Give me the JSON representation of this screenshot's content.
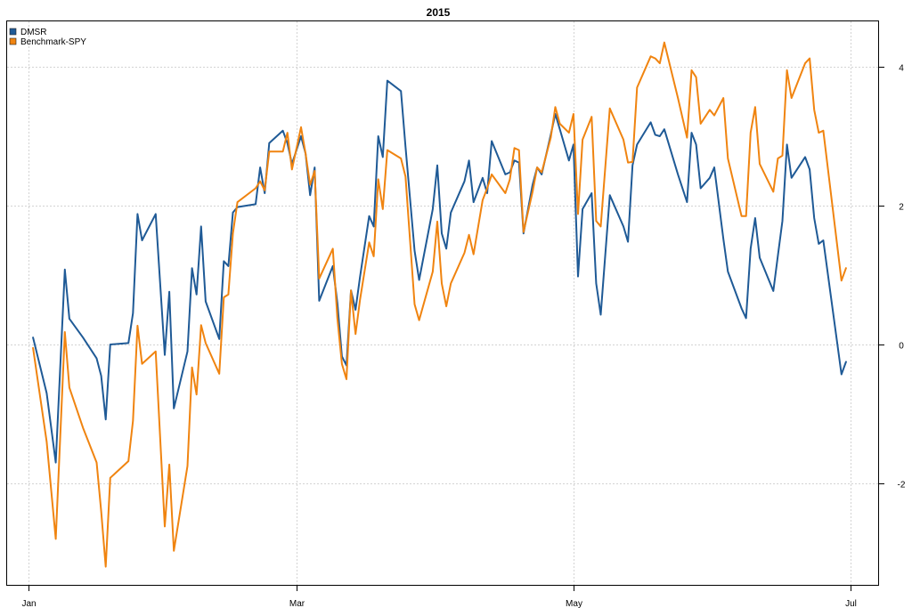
{
  "chart_data": {
    "type": "line",
    "title": "2015",
    "xlabel": "",
    "ylabel": "",
    "x_axis": {
      "type": "date",
      "range": [
        "2015-01-02",
        "2015-06-30"
      ],
      "ticks": [
        {
          "date": "2015-01-01",
          "label": "Jan"
        },
        {
          "date": "2015-03-01",
          "label": "Mar"
        },
        {
          "date": "2015-05-01",
          "label": "May"
        },
        {
          "date": "2015-07-01",
          "label": "Jul"
        }
      ]
    },
    "y_axis": {
      "position": "right",
      "ylim": [
        -3.4,
        4.6
      ],
      "ticks": [
        {
          "value": -2,
          "label": "-2"
        },
        {
          "value": 0,
          "label": "0"
        },
        {
          "value": 2,
          "label": "2"
        },
        {
          "value": 4,
          "label": "4"
        }
      ]
    },
    "grid": true,
    "legend": {
      "placement": "top-left"
    },
    "series": [
      {
        "name": "DMSR",
        "color": "#1f5a96",
        "points": [
          [
            "2015-01-02",
            0.1
          ],
          [
            "2015-01-05",
            -0.7
          ],
          [
            "2015-01-07",
            -1.7
          ],
          [
            "2015-01-09",
            1.08
          ],
          [
            "2015-01-10",
            0.37
          ],
          [
            "2015-01-13",
            0.1
          ],
          [
            "2015-01-16",
            -0.2
          ],
          [
            "2015-01-17",
            -0.45
          ],
          [
            "2015-01-18",
            -1.08
          ],
          [
            "2015-01-19",
            0.0
          ],
          [
            "2015-01-23",
            0.02
          ],
          [
            "2015-01-24",
            0.45
          ],
          [
            "2015-01-25",
            1.88
          ],
          [
            "2015-01-26",
            1.5
          ],
          [
            "2015-01-29",
            1.88
          ],
          [
            "2015-01-31",
            -0.15
          ],
          [
            "2015-02-01",
            0.76
          ],
          [
            "2015-02-02",
            -0.92
          ],
          [
            "2015-02-05",
            -0.1
          ],
          [
            "2015-02-06",
            1.1
          ],
          [
            "2015-02-07",
            0.72
          ],
          [
            "2015-02-08",
            1.7
          ],
          [
            "2015-02-09",
            0.62
          ],
          [
            "2015-02-12",
            0.08
          ],
          [
            "2015-02-13",
            1.2
          ],
          [
            "2015-02-14",
            1.13
          ],
          [
            "2015-02-15",
            1.9
          ],
          [
            "2015-02-16",
            1.98
          ],
          [
            "2015-02-20",
            2.02
          ],
          [
            "2015-02-21",
            2.55
          ],
          [
            "2015-02-22",
            2.18
          ],
          [
            "2015-02-23",
            2.9
          ],
          [
            "2015-02-26",
            3.08
          ],
          [
            "2015-02-27",
            2.9
          ],
          [
            "2015-02-28",
            2.6
          ],
          [
            "2015-03-02",
            3.0
          ],
          [
            "2015-03-03",
            2.75
          ],
          [
            "2015-03-04",
            2.15
          ],
          [
            "2015-03-05",
            2.55
          ],
          [
            "2015-03-06",
            0.63
          ],
          [
            "2015-03-09",
            1.13
          ],
          [
            "2015-03-10",
            0.6
          ],
          [
            "2015-03-11",
            -0.17
          ],
          [
            "2015-03-12",
            -0.3
          ],
          [
            "2015-03-13",
            0.78
          ],
          [
            "2015-03-14",
            0.5
          ],
          [
            "2015-03-15",
            0.98
          ],
          [
            "2015-03-17",
            1.85
          ],
          [
            "2015-03-18",
            1.7
          ],
          [
            "2015-03-19",
            3.0
          ],
          [
            "2015-03-20",
            2.7
          ],
          [
            "2015-03-21",
            3.8
          ],
          [
            "2015-03-24",
            3.65
          ],
          [
            "2015-03-25",
            2.85
          ],
          [
            "2015-03-27",
            1.35
          ],
          [
            "2015-03-28",
            0.93
          ],
          [
            "2015-03-31",
            1.95
          ],
          [
            "2015-04-01",
            2.58
          ],
          [
            "2015-04-02",
            1.6
          ],
          [
            "2015-04-03",
            1.38
          ],
          [
            "2015-04-04",
            1.9
          ],
          [
            "2015-04-07",
            2.35
          ],
          [
            "2015-04-08",
            2.65
          ],
          [
            "2015-04-09",
            2.05
          ],
          [
            "2015-04-11",
            2.4
          ],
          [
            "2015-04-12",
            2.18
          ],
          [
            "2015-04-13",
            2.93
          ],
          [
            "2015-04-16",
            2.45
          ],
          [
            "2015-04-17",
            2.48
          ],
          [
            "2015-04-18",
            2.65
          ],
          [
            "2015-04-19",
            2.62
          ],
          [
            "2015-04-20",
            1.6
          ],
          [
            "2015-04-22",
            2.3
          ],
          [
            "2015-04-23",
            2.55
          ],
          [
            "2015-04-24",
            2.45
          ],
          [
            "2015-04-26",
            3.02
          ],
          [
            "2015-04-27",
            3.32
          ],
          [
            "2015-04-28",
            3.1
          ],
          [
            "2015-04-30",
            2.65
          ],
          [
            "2015-05-01",
            2.88
          ],
          [
            "2015-05-02",
            0.98
          ],
          [
            "2015-05-03",
            1.95
          ],
          [
            "2015-05-05",
            2.18
          ],
          [
            "2015-05-06",
            0.88
          ],
          [
            "2015-05-07",
            0.43
          ],
          [
            "2015-05-09",
            2.15
          ],
          [
            "2015-05-12",
            1.7
          ],
          [
            "2015-05-13",
            1.48
          ],
          [
            "2015-05-14",
            2.58
          ],
          [
            "2015-05-15",
            2.88
          ],
          [
            "2015-05-18",
            3.2
          ],
          [
            "2015-05-19",
            3.02
          ],
          [
            "2015-05-20",
            3.0
          ],
          [
            "2015-05-21",
            3.1
          ],
          [
            "2015-05-24",
            2.45
          ],
          [
            "2015-05-26",
            2.05
          ],
          [
            "2015-05-27",
            3.05
          ],
          [
            "2015-05-28",
            2.88
          ],
          [
            "2015-05-29",
            2.25
          ],
          [
            "2015-05-31",
            2.4
          ],
          [
            "2015-06-01",
            2.55
          ],
          [
            "2015-06-03",
            1.52
          ],
          [
            "2015-06-04",
            1.05
          ],
          [
            "2015-06-07",
            0.52
          ],
          [
            "2015-06-08",
            0.38
          ],
          [
            "2015-06-09",
            1.38
          ],
          [
            "2015-06-10",
            1.82
          ],
          [
            "2015-06-11",
            1.25
          ],
          [
            "2015-06-14",
            0.77
          ],
          [
            "2015-06-15",
            1.28
          ],
          [
            "2015-06-16",
            1.78
          ],
          [
            "2015-06-17",
            2.88
          ],
          [
            "2015-06-18",
            2.4
          ],
          [
            "2015-06-21",
            2.7
          ],
          [
            "2015-06-22",
            2.52
          ],
          [
            "2015-06-23",
            1.82
          ],
          [
            "2015-06-24",
            1.45
          ],
          [
            "2015-06-25",
            1.5
          ],
          [
            "2015-06-29",
            -0.43
          ],
          [
            "2015-06-30",
            -0.25
          ]
        ]
      },
      {
        "name": "Benchmark-SPY",
        "color": "#f08410",
        "points": [
          [
            "2015-01-02",
            -0.05
          ],
          [
            "2015-01-05",
            -1.4
          ],
          [
            "2015-01-07",
            -2.8
          ],
          [
            "2015-01-09",
            0.18
          ],
          [
            "2015-01-10",
            -0.62
          ],
          [
            "2015-01-13",
            -1.2
          ],
          [
            "2015-01-16",
            -1.7
          ],
          [
            "2015-01-17",
            -2.4
          ],
          [
            "2015-01-18",
            -3.2
          ],
          [
            "2015-01-19",
            -1.92
          ],
          [
            "2015-01-23",
            -1.68
          ],
          [
            "2015-01-24",
            -1.1
          ],
          [
            "2015-01-25",
            0.27
          ],
          [
            "2015-01-26",
            -0.28
          ],
          [
            "2015-01-29",
            -0.1
          ],
          [
            "2015-01-31",
            -2.62
          ],
          [
            "2015-02-01",
            -1.73
          ],
          [
            "2015-02-02",
            -2.97
          ],
          [
            "2015-02-05",
            -1.75
          ],
          [
            "2015-02-06",
            -0.33
          ],
          [
            "2015-02-07",
            -0.72
          ],
          [
            "2015-02-08",
            0.28
          ],
          [
            "2015-02-09",
            0.02
          ],
          [
            "2015-02-12",
            -0.42
          ],
          [
            "2015-02-13",
            0.68
          ],
          [
            "2015-02-14",
            0.72
          ],
          [
            "2015-02-15",
            1.6
          ],
          [
            "2015-02-16",
            2.05
          ],
          [
            "2015-02-20",
            2.25
          ],
          [
            "2015-02-21",
            2.35
          ],
          [
            "2015-02-22",
            2.22
          ],
          [
            "2015-02-23",
            2.78
          ],
          [
            "2015-02-26",
            2.78
          ],
          [
            "2015-02-27",
            3.05
          ],
          [
            "2015-02-28",
            2.52
          ],
          [
            "2015-03-02",
            3.13
          ],
          [
            "2015-03-03",
            2.75
          ],
          [
            "2015-03-04",
            2.3
          ],
          [
            "2015-03-05",
            2.5
          ],
          [
            "2015-03-06",
            0.95
          ],
          [
            "2015-03-09",
            1.38
          ],
          [
            "2015-03-10",
            0.38
          ],
          [
            "2015-03-11",
            -0.28
          ],
          [
            "2015-03-12",
            -0.5
          ],
          [
            "2015-03-13",
            0.78
          ],
          [
            "2015-03-14",
            0.15
          ],
          [
            "2015-03-15",
            0.65
          ],
          [
            "2015-03-17",
            1.47
          ],
          [
            "2015-03-18",
            1.27
          ],
          [
            "2015-03-19",
            2.38
          ],
          [
            "2015-03-20",
            1.95
          ],
          [
            "2015-03-21",
            2.8
          ],
          [
            "2015-03-24",
            2.68
          ],
          [
            "2015-03-25",
            2.42
          ],
          [
            "2015-03-27",
            0.58
          ],
          [
            "2015-03-28",
            0.35
          ],
          [
            "2015-03-31",
            1.05
          ],
          [
            "2015-04-01",
            1.77
          ],
          [
            "2015-04-02",
            0.88
          ],
          [
            "2015-04-03",
            0.55
          ],
          [
            "2015-04-04",
            0.88
          ],
          [
            "2015-04-07",
            1.32
          ],
          [
            "2015-04-08",
            1.58
          ],
          [
            "2015-04-09",
            1.3
          ],
          [
            "2015-04-11",
            2.08
          ],
          [
            "2015-04-12",
            2.25
          ],
          [
            "2015-04-13",
            2.45
          ],
          [
            "2015-04-16",
            2.18
          ],
          [
            "2015-04-17",
            2.38
          ],
          [
            "2015-04-18",
            2.83
          ],
          [
            "2015-04-19",
            2.8
          ],
          [
            "2015-04-20",
            1.62
          ],
          [
            "2015-04-22",
            2.2
          ],
          [
            "2015-04-23",
            2.55
          ],
          [
            "2015-04-24",
            2.48
          ],
          [
            "2015-04-26",
            2.98
          ],
          [
            "2015-04-27",
            3.42
          ],
          [
            "2015-04-28",
            3.18
          ],
          [
            "2015-04-30",
            3.05
          ],
          [
            "2015-05-01",
            3.32
          ],
          [
            "2015-05-02",
            1.88
          ],
          [
            "2015-05-03",
            2.95
          ],
          [
            "2015-05-05",
            3.28
          ],
          [
            "2015-05-06",
            1.78
          ],
          [
            "2015-05-07",
            1.7
          ],
          [
            "2015-05-09",
            3.4
          ],
          [
            "2015-05-12",
            2.95
          ],
          [
            "2015-05-13",
            2.62
          ],
          [
            "2015-05-14",
            2.63
          ],
          [
            "2015-05-15",
            3.7
          ],
          [
            "2015-05-18",
            4.15
          ],
          [
            "2015-05-19",
            4.12
          ],
          [
            "2015-05-20",
            4.05
          ],
          [
            "2015-05-21",
            4.35
          ],
          [
            "2015-05-24",
            3.55
          ],
          [
            "2015-05-26",
            2.98
          ],
          [
            "2015-05-27",
            3.95
          ],
          [
            "2015-05-28",
            3.85
          ],
          [
            "2015-05-29",
            3.18
          ],
          [
            "2015-05-31",
            3.38
          ],
          [
            "2015-06-01",
            3.3
          ],
          [
            "2015-06-03",
            3.55
          ],
          [
            "2015-06-04",
            2.68
          ],
          [
            "2015-06-07",
            1.85
          ],
          [
            "2015-06-08",
            1.85
          ],
          [
            "2015-06-09",
            3.05
          ],
          [
            "2015-06-10",
            3.42
          ],
          [
            "2015-06-11",
            2.6
          ],
          [
            "2015-06-14",
            2.2
          ],
          [
            "2015-06-15",
            2.68
          ],
          [
            "2015-06-16",
            2.72
          ],
          [
            "2015-06-17",
            3.95
          ],
          [
            "2015-06-18",
            3.55
          ],
          [
            "2015-06-21",
            4.05
          ],
          [
            "2015-06-22",
            4.12
          ],
          [
            "2015-06-23",
            3.38
          ],
          [
            "2015-06-24",
            3.05
          ],
          [
            "2015-06-25",
            3.08
          ],
          [
            "2015-06-29",
            0.92
          ],
          [
            "2015-06-30",
            1.1
          ]
        ]
      }
    ]
  }
}
